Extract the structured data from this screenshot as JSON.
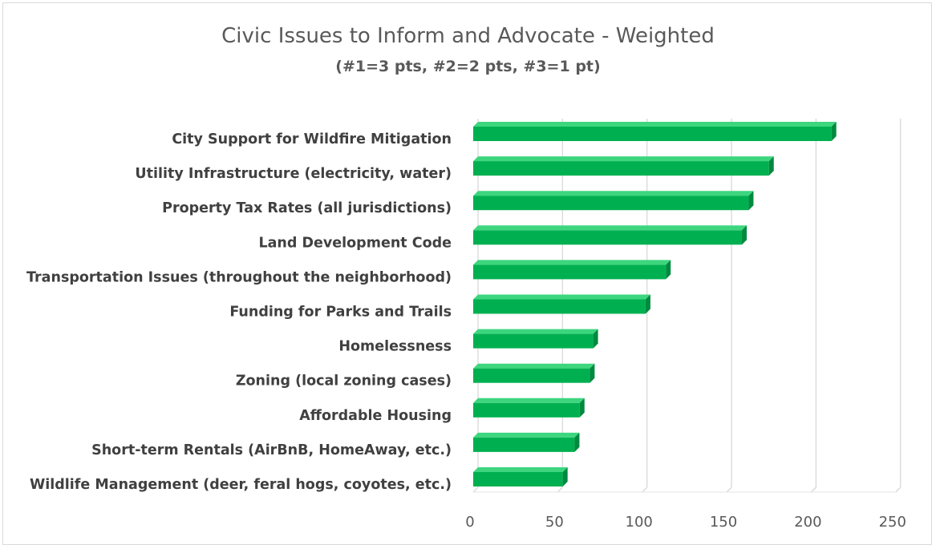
{
  "chart_data": {
    "type": "bar",
    "orientation": "horizontal",
    "title": "Civic Issues to Inform and Advocate - Weighted",
    "subtitle": "(#1=3 pts, #2=2 pts, #3=1 pt)",
    "categories": [
      "City Support for Wildfire Mitigation",
      "Utility Infrastructure (electricity, water)",
      "Property Tax Rates (all jurisdictions)",
      "Land Development Code",
      "Transportation Issues (throughout the neighborhood)",
      "Funding for Parks and Trails",
      "Homelessness",
      "Zoning (local zoning cases)",
      "Affordable Housing",
      "Short-term Rentals (AirBnB, HomeAway, etc.)",
      "Wildlife Management (deer, feral hogs, coyotes, etc.)"
    ],
    "values": [
      212,
      175,
      163,
      159,
      114,
      102,
      71,
      69,
      63,
      60,
      53
    ],
    "xlim": [
      0,
      250
    ],
    "xticks": [
      0,
      50,
      100,
      150,
      200,
      250
    ],
    "xtick_labels": [
      "0",
      "50",
      "100",
      "150",
      "200",
      "250"
    ],
    "grid": true,
    "legend": "none",
    "bar_color": "#00b050"
  }
}
